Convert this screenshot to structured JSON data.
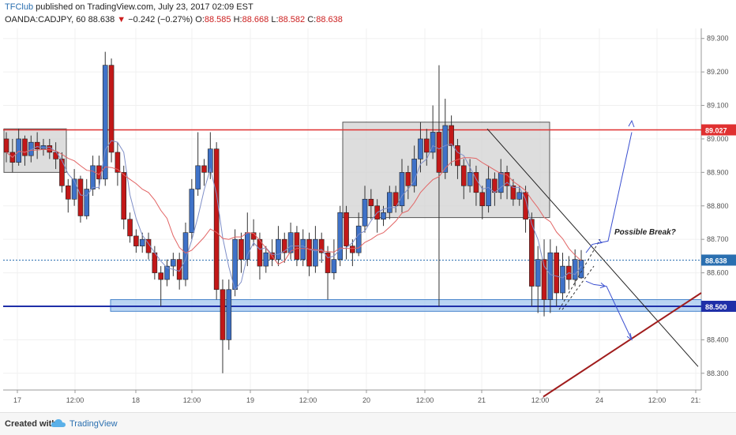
{
  "header": {
    "author": "TFClub",
    "published": " published on TradingView.com, July 23, 2017 02:09 EST",
    "symbol": "OANDA:CADJPY, 60",
    "last": "88.638",
    "arrow": "▼",
    "change": "−0.242 (−0.27%)",
    "o_label": "O:",
    "o_value": "88.585",
    "h_label": "H:",
    "h_value": "88.668",
    "l_label": "L:",
    "l_value": "88.582",
    "c_label": "C:",
    "c_value": "88.638"
  },
  "footer": {
    "created_with": "Created with",
    "brand": "TradingView"
  },
  "colors": {
    "bull": "#3f72c8",
    "bear": "#c21818",
    "resistance": "#e03030",
    "support": "#1f2fa8",
    "accent": "#2a6fb0"
  },
  "chart_data": {
    "type": "candlestick",
    "ylim": [
      88.25,
      89.33
    ],
    "y_ticks": [
      "89.300",
      "89.200",
      "89.100",
      "89.000",
      "88.900",
      "88.800",
      "88.700",
      "88.600",
      "88.500",
      "88.400",
      "88.300"
    ],
    "x_ticks": [
      "17",
      "12:00",
      "18",
      "12:00",
      "19",
      "12:00",
      "20",
      "12:00",
      "21",
      "12:00",
      "24",
      "12:00",
      "21:"
    ],
    "price_labels": [
      {
        "value": 89.027,
        "text": "89.027",
        "color": "#e03030"
      },
      {
        "value": 88.638,
        "text": "88.638",
        "color": "#2a6fb0"
      },
      {
        "value": 88.5,
        "text": "88.500",
        "color": "#1f2fa8"
      }
    ],
    "resistance_level": 89.027,
    "support_level": 88.5,
    "current_price": 88.638,
    "annotation": "Possible Break?",
    "candles": [
      [
        89.0,
        88.96,
        89.02,
        88.93
      ],
      [
        88.96,
        88.93,
        89.0,
        88.9
      ],
      [
        88.93,
        89.0,
        89.03,
        88.92
      ],
      [
        89.0,
        88.95,
        89.01,
        88.92
      ],
      [
        88.95,
        88.99,
        89.01,
        88.93
      ],
      [
        88.99,
        88.97,
        89.02,
        88.94
      ],
      [
        88.97,
        88.98,
        89.0,
        88.95
      ],
      [
        88.98,
        88.96,
        89.0,
        88.94
      ],
      [
        88.96,
        88.94,
        88.99,
        88.91
      ],
      [
        88.94,
        88.86,
        88.96,
        88.84
      ],
      [
        88.86,
        88.82,
        88.88,
        88.78
      ],
      [
        88.82,
        88.88,
        88.91,
        88.8
      ],
      [
        88.88,
        88.77,
        88.89,
        88.75
      ],
      [
        88.77,
        88.85,
        88.88,
        88.76
      ],
      [
        88.85,
        88.92,
        88.95,
        88.83
      ],
      [
        88.92,
        88.88,
        88.95,
        88.85
      ],
      [
        88.88,
        89.22,
        89.26,
        88.86
      ],
      [
        89.22,
        88.96,
        89.24,
        88.93
      ],
      [
        88.96,
        88.9,
        88.99,
        88.86
      ],
      [
        88.9,
        88.76,
        88.92,
        88.73
      ],
      [
        88.76,
        88.71,
        88.78,
        88.69
      ],
      [
        88.71,
        88.68,
        88.73,
        88.66
      ],
      [
        88.68,
        88.7,
        88.72,
        88.66
      ],
      [
        88.7,
        88.66,
        88.72,
        88.64
      ],
      [
        88.66,
        88.6,
        88.68,
        88.58
      ],
      [
        88.6,
        88.58,
        88.62,
        88.5
      ],
      [
        88.58,
        88.62,
        88.64,
        88.56
      ],
      [
        88.62,
        88.64,
        88.66,
        88.59
      ],
      [
        88.64,
        88.58,
        88.66,
        88.55
      ],
      [
        88.58,
        88.72,
        88.75,
        88.56
      ],
      [
        88.72,
        88.85,
        88.88,
        88.7
      ],
      [
        88.85,
        88.92,
        89.02,
        88.83
      ],
      [
        88.92,
        88.9,
        88.94,
        88.86
      ],
      [
        88.9,
        88.97,
        89.02,
        88.88
      ],
      [
        88.97,
        88.55,
        88.99,
        88.52
      ],
      [
        88.55,
        88.4,
        88.58,
        88.3
      ],
      [
        88.4,
        88.55,
        88.58,
        88.37
      ],
      [
        88.55,
        88.7,
        88.73,
        88.53
      ],
      [
        88.7,
        88.64,
        88.72,
        88.6
      ],
      [
        88.64,
        88.72,
        88.78,
        88.62
      ],
      [
        88.72,
        88.7,
        88.76,
        88.68
      ],
      [
        88.7,
        88.62,
        88.72,
        88.58
      ],
      [
        88.62,
        88.66,
        88.68,
        88.6
      ],
      [
        88.66,
        88.64,
        88.7,
        88.62
      ],
      [
        88.64,
        88.7,
        88.74,
        88.62
      ],
      [
        88.7,
        88.66,
        88.72,
        88.63
      ],
      [
        88.66,
        88.72,
        88.75,
        88.64
      ],
      [
        88.72,
        88.64,
        88.74,
        88.62
      ],
      [
        88.64,
        88.7,
        88.73,
        88.62
      ],
      [
        88.7,
        88.62,
        88.72,
        88.59
      ],
      [
        88.62,
        88.7,
        88.74,
        88.6
      ],
      [
        88.7,
        88.66,
        88.72,
        88.63
      ],
      [
        88.66,
        88.6,
        88.68,
        88.52
      ],
      [
        88.6,
        88.64,
        88.7,
        88.58
      ],
      [
        88.64,
        88.78,
        88.8,
        88.62
      ],
      [
        88.78,
        88.68,
        88.8,
        88.64
      ],
      [
        88.68,
        88.66,
        88.7,
        88.62
      ],
      [
        88.66,
        88.74,
        88.78,
        88.65
      ],
      [
        88.74,
        88.82,
        88.86,
        88.72
      ],
      [
        88.82,
        88.8,
        88.85,
        88.76
      ],
      [
        88.8,
        88.76,
        88.82,
        88.72
      ],
      [
        88.76,
        88.78,
        88.8,
        88.74
      ],
      [
        88.78,
        88.84,
        88.86,
        88.76
      ],
      [
        88.84,
        88.8,
        88.86,
        88.78
      ],
      [
        88.8,
        88.9,
        88.94,
        88.78
      ],
      [
        88.9,
        88.86,
        88.92,
        88.82
      ],
      [
        88.86,
        88.94,
        88.98,
        88.84
      ],
      [
        88.94,
        89.0,
        89.05,
        88.9
      ],
      [
        89.0,
        88.96,
        89.03,
        88.92
      ],
      [
        88.96,
        89.02,
        89.1,
        88.94
      ],
      [
        89.02,
        88.9,
        89.22,
        88.5
      ],
      [
        88.9,
        89.04,
        89.12,
        88.88
      ],
      [
        89.04,
        88.98,
        89.07,
        88.92
      ],
      [
        88.98,
        88.92,
        89.0,
        88.88
      ],
      [
        88.92,
        88.86,
        88.94,
        88.82
      ],
      [
        88.86,
        88.9,
        88.94,
        88.84
      ],
      [
        88.9,
        88.84,
        88.92,
        88.8
      ],
      [
        88.84,
        88.8,
        88.86,
        88.76
      ],
      [
        88.8,
        88.88,
        88.92,
        88.78
      ],
      [
        88.88,
        88.84,
        88.9,
        88.8
      ],
      [
        88.84,
        88.9,
        88.94,
        88.82
      ],
      [
        88.9,
        88.86,
        88.92,
        88.82
      ],
      [
        88.86,
        88.82,
        88.88,
        88.8
      ],
      [
        88.82,
        88.84,
        88.86,
        88.8
      ],
      [
        88.84,
        88.76,
        88.86,
        88.72
      ],
      [
        88.76,
        88.56,
        88.78,
        88.5
      ],
      [
        88.56,
        88.64,
        88.68,
        88.48
      ],
      [
        88.64,
        88.52,
        88.7,
        88.47
      ],
      [
        88.52,
        88.66,
        88.7,
        88.48
      ],
      [
        88.66,
        88.54,
        88.68,
        88.5
      ],
      [
        88.54,
        88.62,
        88.66,
        88.52
      ],
      [
        88.62,
        88.58,
        88.65,
        88.55
      ],
      [
        88.58,
        88.64,
        88.67,
        88.56
      ],
      [
        88.585,
        88.638,
        88.668,
        88.582
      ]
    ]
  }
}
